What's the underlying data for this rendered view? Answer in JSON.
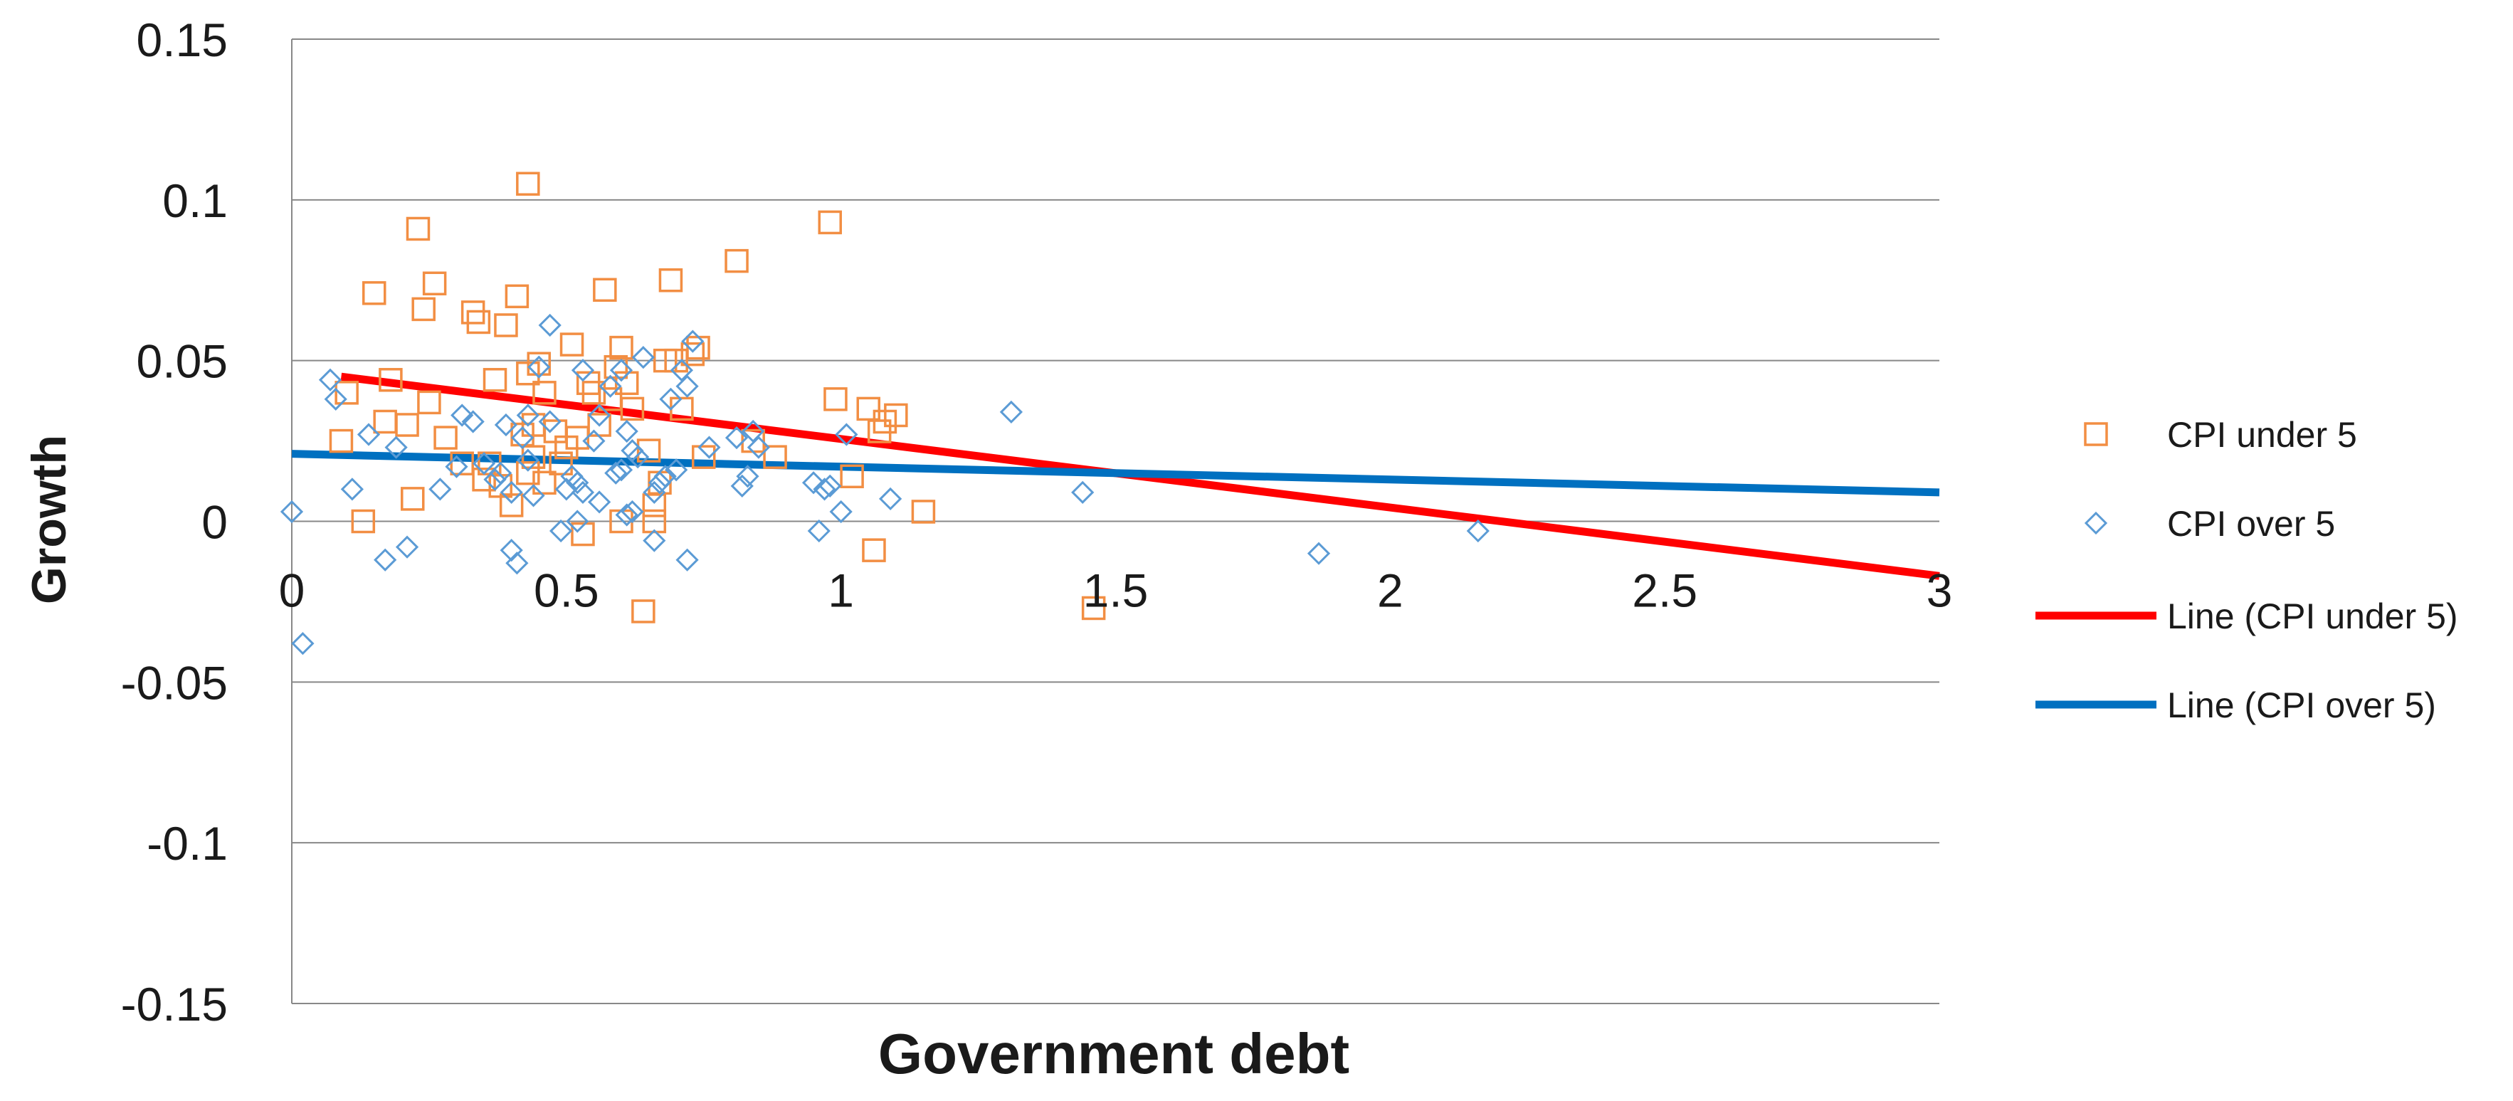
{
  "chart_data": {
    "type": "scatter",
    "title": "",
    "xlabel": "Government debt",
    "ylabel": "Growth",
    "xlim": [
      0,
      3
    ],
    "ylim": [
      -0.15,
      0.15
    ],
    "xticks": [
      0,
      0.5,
      1,
      1.5,
      2,
      2.5,
      3
    ],
    "xtick_labels": [
      "0",
      "0.5",
      "1",
      "1.5",
      "2",
      "2.5",
      "3"
    ],
    "yticks": [
      0.15,
      0.1,
      0.05,
      0,
      -0.05,
      -0.1,
      -0.15
    ],
    "ytick_labels": [
      "0.15",
      "0.1",
      "0.05",
      "0",
      "-0.05",
      "-0.1",
      "-0.15"
    ],
    "grid": "horizontal",
    "legend_position": "right",
    "series": [
      {
        "name": "CPI under 5",
        "marker": "square",
        "color": "#f28e43",
        "points": [
          [
            0.09,
            0.025
          ],
          [
            0.1,
            0.04
          ],
          [
            0.13,
            0.0
          ],
          [
            0.15,
            0.071
          ],
          [
            0.17,
            0.031
          ],
          [
            0.18,
            0.044
          ],
          [
            0.21,
            0.03
          ],
          [
            0.22,
            0.007
          ],
          [
            0.23,
            0.091
          ],
          [
            0.24,
            0.066
          ],
          [
            0.25,
            0.037
          ],
          [
            0.26,
            0.074
          ],
          [
            0.28,
            0.026
          ],
          [
            0.31,
            0.018
          ],
          [
            0.33,
            0.065
          ],
          [
            0.34,
            0.062
          ],
          [
            0.35,
            0.013
          ],
          [
            0.36,
            0.018
          ],
          [
            0.37,
            0.044
          ],
          [
            0.38,
            0.011
          ],
          [
            0.39,
            0.061
          ],
          [
            0.4,
            0.005
          ],
          [
            0.41,
            0.07
          ],
          [
            0.42,
            0.027
          ],
          [
            0.43,
            0.046
          ],
          [
            0.43,
            0.015
          ],
          [
            0.44,
            0.03
          ],
          [
            0.44,
            0.02
          ],
          [
            0.43,
            0.105
          ],
          [
            0.45,
            0.049
          ],
          [
            0.46,
            0.012
          ],
          [
            0.46,
            0.04
          ],
          [
            0.48,
            0.028
          ],
          [
            0.49,
            0.018
          ],
          [
            0.5,
            0.023
          ],
          [
            0.51,
            0.055
          ],
          [
            0.52,
            0.026
          ],
          [
            0.53,
            -0.004
          ],
          [
            0.54,
            0.043
          ],
          [
            0.55,
            0.04
          ],
          [
            0.56,
            0.03
          ],
          [
            0.57,
            0.072
          ],
          [
            0.58,
            0.038
          ],
          [
            0.59,
            0.048
          ],
          [
            0.6,
            0.054
          ],
          [
            0.6,
            0.0
          ],
          [
            0.61,
            0.043
          ],
          [
            0.62,
            0.035
          ],
          [
            0.64,
            -0.028
          ],
          [
            0.65,
            0.022
          ],
          [
            0.66,
            0.005
          ],
          [
            0.66,
            0.0
          ],
          [
            0.67,
            0.012
          ],
          [
            0.68,
            0.05
          ],
          [
            0.69,
            0.075
          ],
          [
            0.7,
            0.05
          ],
          [
            0.71,
            0.035
          ],
          [
            0.73,
            0.052
          ],
          [
            0.74,
            0.054
          ],
          [
            0.75,
            0.02
          ],
          [
            0.81,
            0.081
          ],
          [
            0.84,
            0.025
          ],
          [
            0.88,
            0.02
          ],
          [
            0.98,
            0.093
          ],
          [
            0.99,
            0.038
          ],
          [
            1.02,
            0.014
          ],
          [
            1.05,
            0.035
          ],
          [
            1.06,
            -0.009
          ],
          [
            1.07,
            0.028
          ],
          [
            1.08,
            0.031
          ],
          [
            1.1,
            0.033
          ],
          [
            1.15,
            0.003
          ],
          [
            1.46,
            -0.027
          ]
        ]
      },
      {
        "name": "CPI over 5",
        "marker": "diamond",
        "color": "#5b9bd5",
        "points": [
          [
            0.0,
            0.003
          ],
          [
            0.02,
            -0.038
          ],
          [
            0.07,
            0.044
          ],
          [
            0.08,
            0.038
          ],
          [
            0.11,
            0.01
          ],
          [
            0.14,
            0.027
          ],
          [
            0.17,
            -0.012
          ],
          [
            0.19,
            0.023
          ],
          [
            0.21,
            -0.008
          ],
          [
            0.27,
            0.01
          ],
          [
            0.3,
            0.017
          ],
          [
            0.31,
            0.033
          ],
          [
            0.33,
            0.031
          ],
          [
            0.35,
            0.018
          ],
          [
            0.37,
            0.013
          ],
          [
            0.38,
            0.015
          ],
          [
            0.39,
            0.03
          ],
          [
            0.4,
            -0.009
          ],
          [
            0.4,
            0.009
          ],
          [
            0.41,
            -0.013
          ],
          [
            0.42,
            0.026
          ],
          [
            0.43,
            0.019
          ],
          [
            0.43,
            0.033
          ],
          [
            0.44,
            0.008
          ],
          [
            0.45,
            0.048
          ],
          [
            0.47,
            0.031
          ],
          [
            0.47,
            0.061
          ],
          [
            0.49,
            -0.003
          ],
          [
            0.5,
            0.01
          ],
          [
            0.51,
            0.014
          ],
          [
            0.52,
            0.0
          ],
          [
            0.52,
            0.012
          ],
          [
            0.53,
            0.047
          ],
          [
            0.53,
            0.009
          ],
          [
            0.55,
            0.025
          ],
          [
            0.56,
            0.033
          ],
          [
            0.56,
            0.006
          ],
          [
            0.58,
            0.042
          ],
          [
            0.59,
            0.015
          ],
          [
            0.6,
            0.016
          ],
          [
            0.6,
            0.047
          ],
          [
            0.61,
            0.002
          ],
          [
            0.61,
            0.028
          ],
          [
            0.62,
            0.003
          ],
          [
            0.62,
            0.022
          ],
          [
            0.63,
            0.02
          ],
          [
            0.64,
            0.051
          ],
          [
            0.66,
            -0.006
          ],
          [
            0.66,
            0.009
          ],
          [
            0.67,
            0.012
          ],
          [
            0.68,
            0.014
          ],
          [
            0.69,
            0.038
          ],
          [
            0.7,
            0.016
          ],
          [
            0.71,
            0.047
          ],
          [
            0.72,
            -0.012
          ],
          [
            0.72,
            0.042
          ],
          [
            0.73,
            0.056
          ],
          [
            0.76,
            0.023
          ],
          [
            0.81,
            0.026
          ],
          [
            0.82,
            0.011
          ],
          [
            0.83,
            0.014
          ],
          [
            0.84,
            0.028
          ],
          [
            0.85,
            0.023
          ],
          [
            0.95,
            0.012
          ],
          [
            0.96,
            -0.003
          ],
          [
            0.97,
            0.01
          ],
          [
            0.98,
            0.011
          ],
          [
            1.0,
            0.003
          ],
          [
            1.01,
            0.027
          ],
          [
            1.09,
            0.007
          ],
          [
            1.31,
            0.034
          ],
          [
            1.44,
            0.009
          ],
          [
            1.87,
            -0.01
          ],
          [
            2.16,
            -0.003
          ]
        ]
      },
      {
        "name": "Line (CPI under 5)",
        "type": "line",
        "color": "#ff0000",
        "points": [
          [
            0.09,
            0.045
          ],
          [
            3.0,
            -0.017
          ]
        ]
      },
      {
        "name": "Line (CPI over 5)",
        "type": "line",
        "color": "#0070c0",
        "points": [
          [
            0.0,
            0.021
          ],
          [
            3.0,
            0.009
          ]
        ]
      }
    ]
  }
}
